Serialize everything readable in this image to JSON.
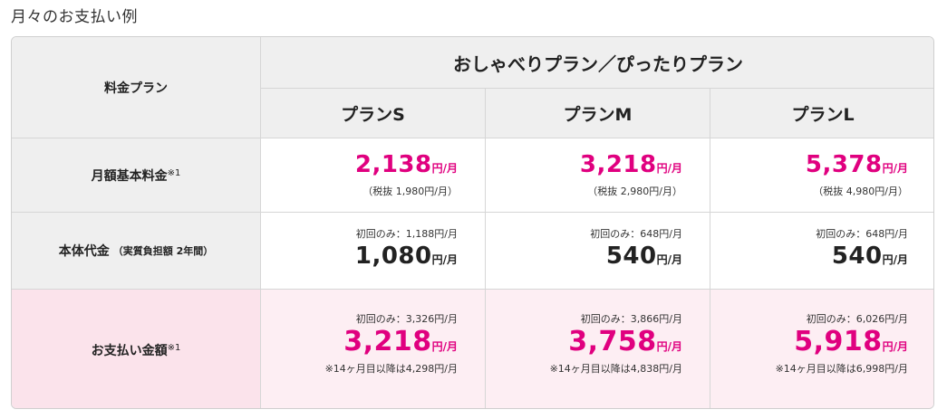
{
  "page_title": "月々のお支払い例",
  "table": {
    "corner_label": "料金プラン",
    "group_header": "おしゃべりプラン／ぴったりプラン",
    "plans": [
      {
        "name": "プランS",
        "monthly_basic": {
          "price": "2,138",
          "unit": "円/月",
          "tax_note": "（税抜 1,980円/月）"
        },
        "device": {
          "first_note": "初回のみ：1,188円/月",
          "price": "1,080",
          "unit": "円/月"
        },
        "payment": {
          "first_note": "初回のみ：3,326円/月",
          "price": "3,218",
          "unit": "円/月",
          "after_note": "※14ヶ月目以降は4,298円/月"
        }
      },
      {
        "name": "プランM",
        "monthly_basic": {
          "price": "3,218",
          "unit": "円/月",
          "tax_note": "（税抜 2,980円/月）"
        },
        "device": {
          "first_note": "初回のみ：648円/月",
          "price": "540",
          "unit": "円/月"
        },
        "payment": {
          "first_note": "初回のみ：3,866円/月",
          "price": "3,758",
          "unit": "円/月",
          "after_note": "※14ヶ月目以降は4,838円/月"
        }
      },
      {
        "name": "プランL",
        "monthly_basic": {
          "price": "5,378",
          "unit": "円/月",
          "tax_note": "（税抜 4,980円/月）"
        },
        "device": {
          "first_note": "初回のみ：648円/月",
          "price": "540",
          "unit": "円/月"
        },
        "payment": {
          "first_note": "初回のみ：6,026円/月",
          "price": "5,918",
          "unit": "円/月",
          "after_note": "※14ヶ月目以降は6,998円/月"
        }
      }
    ],
    "rows": {
      "monthly_basic_label": "月額基本料金",
      "monthly_basic_mark": "※1",
      "device_label": "本体代金",
      "device_sub": "（実質負担額 2年間）",
      "payment_label": "お支払い金額",
      "payment_mark": "※1"
    }
  },
  "colors": {
    "accent": "#e0007f",
    "header_bg": "#efefef",
    "pink_bg": "#fdeef3",
    "border": "#d6d6d6"
  }
}
